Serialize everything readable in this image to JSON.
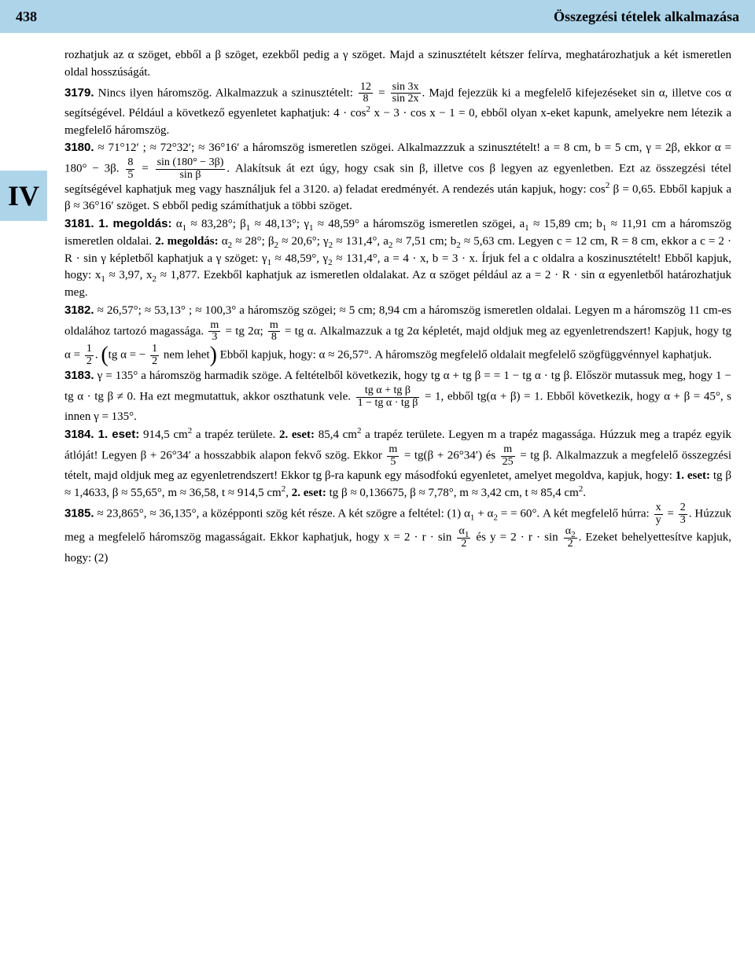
{
  "header": {
    "page": "438",
    "title": "Összegzési tételek alkalmazása"
  },
  "sidebar": {
    "chapter": "IV"
  },
  "body": {
    "p1": "rozhatjuk az α szöget, ebből a β szöget, ezekből pedig a γ szöget. Majd a szinusztételt kétszer felírva, meghatározhatjuk a két ismeretlen oldal hosszúságát.",
    "n3179": "3179.",
    "p3179a": " Nincs ilyen háromszög. Alkalmazzuk a szinusztételt: ",
    "frac1n": "12",
    "frac1d": "8",
    "eq": " = ",
    "frac2n": "sin 3x",
    "frac2d": "sin 2x",
    "p3179b": ". Majd fejezzük ki a megfelelő kifejezéseket sin α, illetve cos α segítségével. Például a következő egyenletet kaphatjuk: 4 · cos",
    "sup2": "2",
    "p3179c": " x − 3 · cos x − 1 = 0, ebből olyan x-eket kapunk, amelyekre nem létezik a megfelelő háromszög.",
    "n3180": "3180.",
    "p3180a": " ≈ 71°12′ ; ≈ 72°32′; ≈ 36°16′ a háromszög ismeretlen szögei. Alkalmazzzuk a szinusz­tételt! a = 8 cm, b = 5 cm, γ = 2β, ekkor α = 180° − 3β. ",
    "frac3n": "8",
    "frac3d": "5",
    "frac4n": "sin (180° − 3β)",
    "frac4d": "sin β",
    "p3180b": ". Alakítsuk át ezt úgy, hogy csak sin β, illetve cos β legyen az egyenletben. Ezt az összegzési tétel segítségével kaphatjuk meg vagy használjuk fel a 3120. a) feladat eredményét. A rendezés után kapjuk, hogy: cos",
    "p3180c": " β = 0,65. Ebből kapjuk a β ≈ 36°16′ szöget. S ebből pedig számíthatjuk a többi szöget.",
    "n3181": "3181. 1. megoldás:",
    "p3181a": " α",
    "sub1": "1",
    "p3181b": " ≈ 83,28°; β",
    "p3181c": " ≈ 48,13°; γ",
    "p3181d": " ≈ 48,59° a háromszög ismeretlen szögei, a",
    "p3181e": " ≈ 15,89 cm; b",
    "p3181f": " ≈ 11,91 cm a háromszög ismeretlen oldalai. ",
    "meg2": "2. megoldás:",
    "p3181g": " α",
    "sub2t": "2",
    "p3181h": " ≈ 28°; β",
    "p3181i": " ≈ 20,6°; γ",
    "p3181j": " ≈ 131,4°, a",
    "p3181k": " ≈ 7,51 cm; b",
    "p3181l": " ≈ 5,63 cm. Legyen c = 12 cm, R = 8 cm, ekkor a c = 2 · R · sin γ képletből kaphatjuk a γ szöget: γ",
    "p3181m": " ≈ 48,59°, γ",
    "p3181n": " ≈ 131,4°, a = 4 · x, b = 3 · x. Írjuk fel a c oldalra a koszinusztételt! Ebből kapjuk, hogy: x",
    "p3181o": " ≈ 3,97, x",
    "p3181p": " ≈ 1,877. Ezekből kaphatjuk az ismeretlen ol­dalakat. Az α szöget például az a = 2 · R · sin α egyenletből határozhatjuk meg.",
    "n3182": "3182.",
    "p3182a": " ≈ 26,57°; ≈ 53,13° ; ≈ 100,3° a háromszög szögei; ≈ 5 cm; 8,94 cm a háromszög ismeretlen oldalai. Legyen m a háromszög 11 cm-es oldalához tartozó magassága. ",
    "fracm3n": "m",
    "fracm3d": "3",
    "p3182b": " = tg 2α; ",
    "fracm8n": "m",
    "fracm8d": "8",
    "p3182c": " = tg α. Alkalmazzuk a tg 2α képletét, majd oldjuk meg az egyenletrendszert! Kapjuk, hogy tg α = ",
    "frac12n": "1",
    "frac12d": "2",
    "p3182d": ". ",
    "lparen": "(",
    "rparen": ")",
    "p3182par": "tg α = − ",
    "p3182par2": " nem lehet",
    "p3182e": " Ebből kapjuk, hogy: α ≈ 26,57°. A háromszög megfelelő ol­dalait megfelelő szögfüggvénnyel kaphatjuk.",
    "n3183": "3183.",
    "p3183a": " γ = 135° a háromszög harmadik szöge. A feltételből következik, hogy tg α + tg β = = 1 − tg α · tg β. Először mutassuk meg, hogy 1 − tg α · tg β ≠ 0. Ha ezt megmutattuk, akkor oszthatunk vele. ",
    "fracTn": "tg α + tg β",
    "fracTd": "1 − tg α · tg β",
    "p3183b": " = 1, ebből tg(α + β) = 1. Ebből következik, hogy α + β = 45°, s innen γ = 135°.",
    "n3184": "3184. 1. eset:",
    "p3184a": " 914,5 cm",
    "p3184b": " a trapéz területe. ",
    "eset2": "2. eset:",
    "p3184c": " 85,4 cm",
    "p3184d": " a trapéz területe. Legyen m a tra­péz magassága. Húzzuk meg a trapéz egyik átlóját! Legyen β + 26°34′ a hosszabbik alapon fek­vő szög. Ekkor ",
    "fracm5n": "m",
    "fracm5d": "5",
    "p3184e": " = tg(β + 26°34′) és ",
    "fracm25n": "m",
    "fracm25d": "25",
    "p3184f": " = tg β. Alkalmazzuk a megfelelő összegzési tételt, majd oldjuk meg az egyenletrendszert! Ekkor tg β-ra kapunk egy másodfokú egyenletet, ame­lyet megoldva, kapjuk, hogy: ",
    "eset1b": "1. eset:",
    "p3184g": " tg β ≈ 1,4633, β ≈ 55,65°, m ≈ 36,58, t ≈ 914,5 cm",
    "p3184h": ", ",
    "eset2b": "2. eset:",
    "p3184i": " tg β ≈ 0,136675, β ≈ 7,78°, m ≈ 3,42 cm, t ≈ 85,4 cm",
    "p3184j": ".",
    "n3185": "3185.",
    "p3185a": " ≈ 23,865°, ≈ 36,135°, a középponti szög két része. A két szögre a feltétel: (1) α",
    "p3185b": " + α",
    "p3185c": " = = 60°. A két megfelelő húrra: ",
    "fracxyn": "x",
    "fracxyd": "y",
    "frac23n": "2",
    "frac23d": "3",
    "p3185d": ". Húzzuk meg a megfelelő háromszög magasságait. Ekkor kaphatjuk, hogy x = 2 · r · sin ",
    "fraca1n": "α",
    "fraca1sub": "1",
    "fraca1d": "2",
    "p3185e": " és y = 2 · r · sin ",
    "fraca2n": "α",
    "fraca2sub": "2",
    "fraca2d": "2",
    "p3185f": ". Ezeket behelyettesítve kapjuk, hogy: (2)"
  }
}
